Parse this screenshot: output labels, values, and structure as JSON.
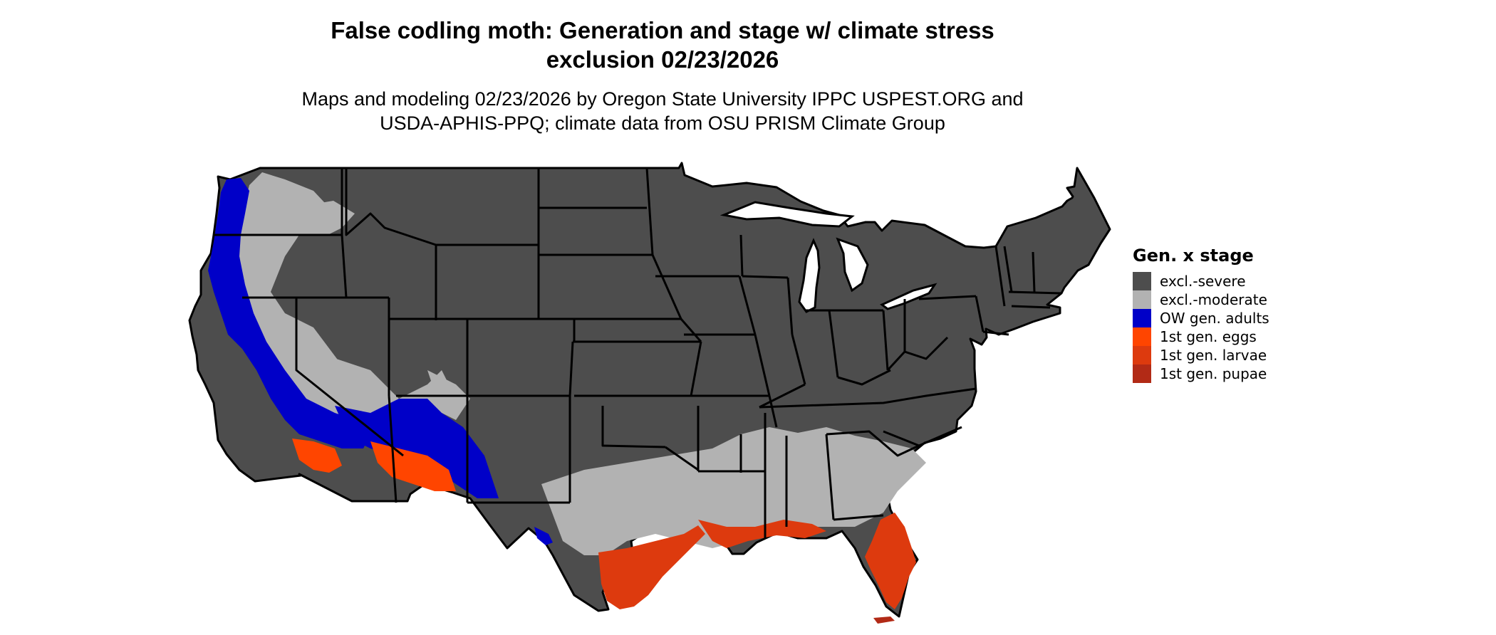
{
  "title": "False codling moth: Generation and stage w/ climate stress exclusion 02/23/2026",
  "subtitle": "Maps and modeling 02/23/2026 by Oregon State University IPPC USPEST.ORG and USDA-APHIS-PPQ; climate data from OSU PRISM Climate Group",
  "legend": {
    "title": "Gen. x stage",
    "items": [
      {
        "label": "excl.-severe",
        "color": "#4d4d4d"
      },
      {
        "label": "excl.-moderate",
        "color": "#b2b2b2"
      },
      {
        "label": "OW gen. adults",
        "color": "#0000c8"
      },
      {
        "label": "1st gen. eggs",
        "color": "#ff4500"
      },
      {
        "label": "1st gen. larvae",
        "color": "#dd3a0e"
      },
      {
        "label": "1st gen. pupae",
        "color": "#b22a16"
      }
    ]
  },
  "colors": {
    "state_border": "#000000",
    "background": "#ffffff"
  }
}
